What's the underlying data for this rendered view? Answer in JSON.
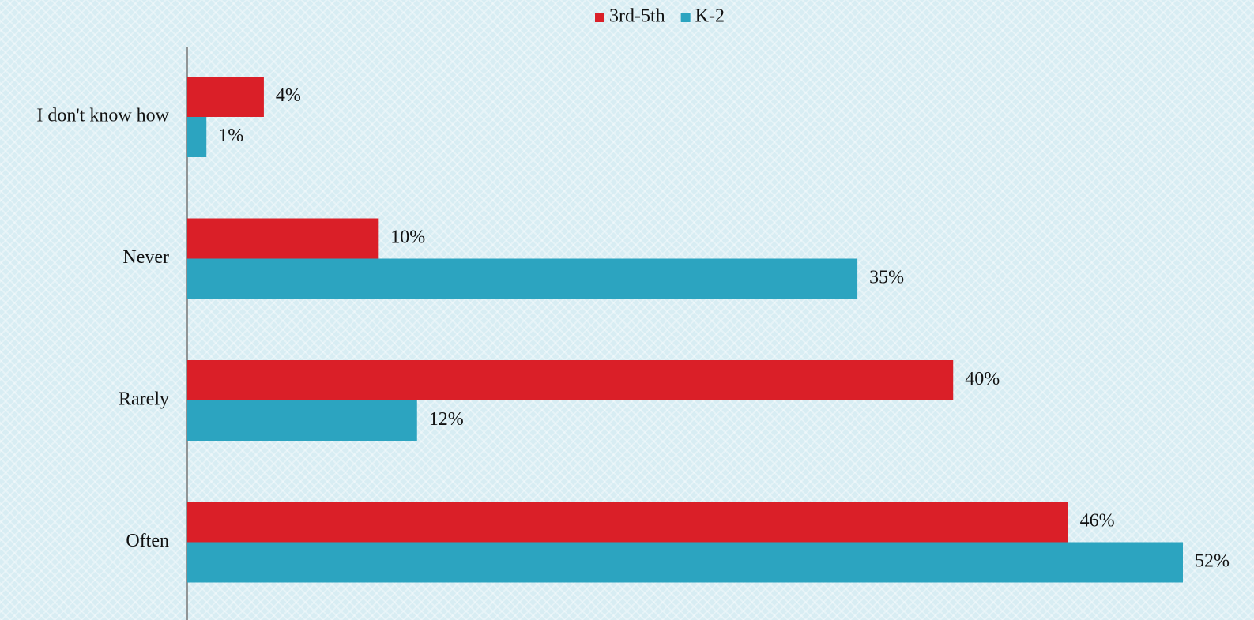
{
  "chart_data": {
    "type": "bar",
    "orientation": "horizontal",
    "categories": [
      "I don't know how",
      "Never",
      "Rarely",
      "Often"
    ],
    "series": [
      {
        "name": "3rd-5th",
        "color": "#da1f28",
        "values": [
          4,
          10,
          40,
          46
        ],
        "value_labels": [
          "4%",
          "10%",
          "40%",
          "46%"
        ]
      },
      {
        "name": "K-2",
        "color": "#2ca4c0",
        "values": [
          1,
          35,
          12,
          52
        ],
        "value_labels": [
          "1%",
          "35%",
          "12%",
          "52%"
        ]
      }
    ],
    "legend": "top"
  }
}
